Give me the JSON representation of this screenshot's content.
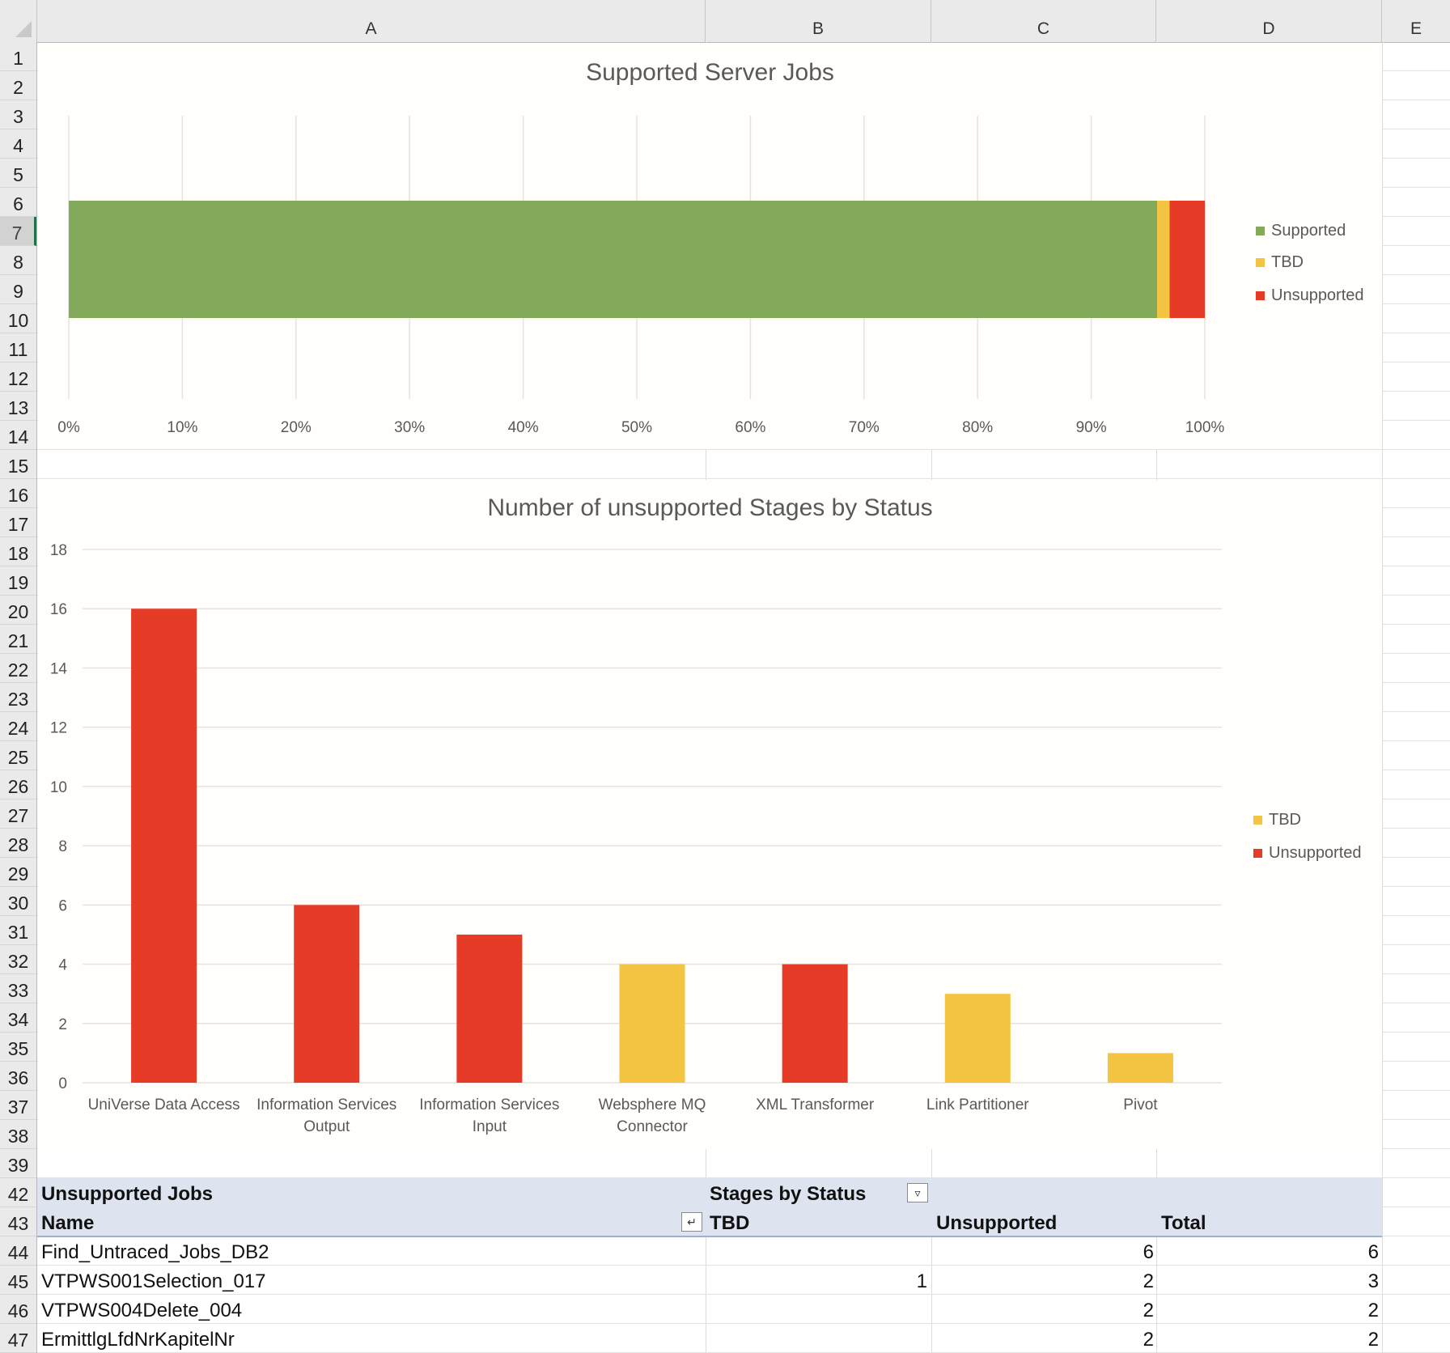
{
  "columns": [
    "A",
    "B",
    "C",
    "D",
    "E"
  ],
  "rows": [
    "1",
    "2",
    "3",
    "4",
    "5",
    "6",
    "7",
    "8",
    "9",
    "10",
    "11",
    "12",
    "13",
    "14",
    "15",
    "16",
    "17",
    "18",
    "19",
    "20",
    "21",
    "22",
    "23",
    "24",
    "25",
    "26",
    "27",
    "28",
    "29",
    "30",
    "31",
    "32",
    "33",
    "34",
    "35",
    "36",
    "37",
    "38",
    "39",
    "42",
    "43",
    "44",
    "45",
    "46",
    "47"
  ],
  "active_row": "7",
  "colors": {
    "supported": "#83aa5a",
    "tbd": "#f4c542",
    "unsupported": "#e63b26",
    "pivot_header": "#dde3ef"
  },
  "chart_data": [
    {
      "type": "bar",
      "orientation": "horizontal",
      "stacked": "100%",
      "title": "Supported Server Jobs",
      "categories": [
        ""
      ],
      "series": [
        {
          "name": "Supported",
          "values": [
            95.8
          ]
        },
        {
          "name": "TBD",
          "values": [
            1.1
          ]
        },
        {
          "name": "Unsupported",
          "values": [
            3.1
          ]
        }
      ],
      "xlim": [
        0,
        100
      ],
      "x_tick_labels": [
        "0%",
        "10%",
        "20%",
        "30%",
        "40%",
        "50%",
        "60%",
        "70%",
        "80%",
        "90%",
        "100%"
      ],
      "legend": "right",
      "grid": true
    },
    {
      "type": "bar",
      "stacked": true,
      "title": "Number of unsupported Stages by Status",
      "categories": [
        "UniVerse Data Access",
        "Information Services Output",
        "Information Services Input",
        "Websphere MQ Connector",
        "XML Transformer",
        "Link Partitioner",
        "Pivot"
      ],
      "category_lines": [
        [
          "UniVerse Data Access"
        ],
        [
          "Information Services",
          "Output"
        ],
        [
          "Information Services",
          "Input"
        ],
        [
          "Websphere MQ",
          "Connector"
        ],
        [
          "XML Transformer"
        ],
        [
          "Link Partitioner"
        ],
        [
          "Pivot"
        ]
      ],
      "series": [
        {
          "name": "TBD",
          "values": [
            0,
            0,
            0,
            4,
            0,
            3,
            1
          ]
        },
        {
          "name": "Unsupported",
          "values": [
            16,
            6,
            5,
            0,
            4,
            0,
            0
          ]
        }
      ],
      "ylim": [
        0,
        18
      ],
      "y_tick_labels": [
        "0",
        "2",
        "4",
        "6",
        "8",
        "10",
        "12",
        "14",
        "16",
        "18"
      ],
      "legend": "right",
      "grid": true
    }
  ],
  "pivot": {
    "title": "Unsupported Jobs",
    "col_field": "Stages by Status",
    "row_field": "Name",
    "headers": [
      "TBD",
      "Unsupported",
      "Total"
    ],
    "rows": [
      {
        "name": "Find_Untraced_Jobs_DB2",
        "tbd": "",
        "unsupported": "6",
        "total": "6"
      },
      {
        "name": "VTPWS001Selection_017",
        "tbd": "1",
        "unsupported": "2",
        "total": "3"
      },
      {
        "name": "VTPWS004Delete_004",
        "tbd": "",
        "unsupported": "2",
        "total": "2"
      },
      {
        "name": "ErmittlgLfdNrKapitelNr",
        "tbd": "",
        "unsupported": "2",
        "total": "2"
      }
    ]
  }
}
